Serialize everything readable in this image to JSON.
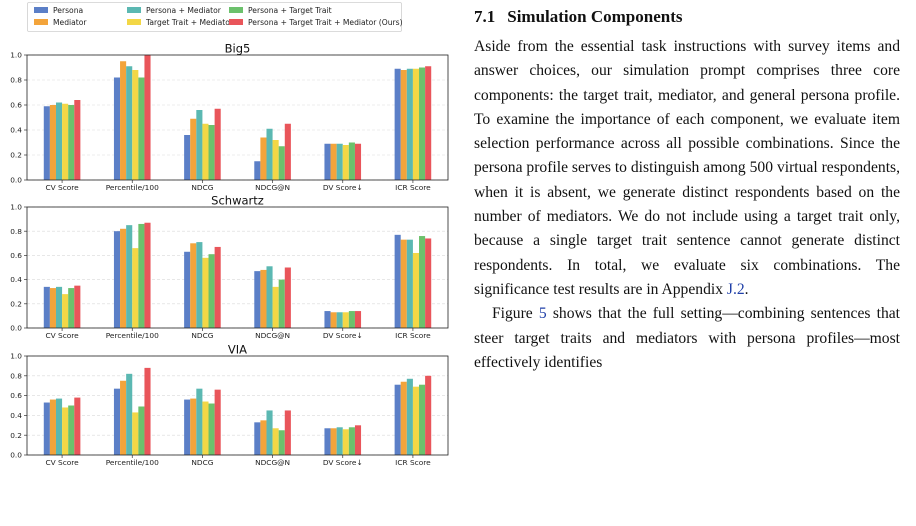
{
  "figure": {
    "legend": [
      {
        "label": "Persona",
        "color": "#5b7fc7"
      },
      {
        "label": "Mediator",
        "color": "#f3a43b"
      },
      {
        "label": "Persona + Mediator",
        "color": "#5bb8b2"
      },
      {
        "label": "Target Trait + Mediator",
        "color": "#f3d746"
      },
      {
        "label": "Persona + Target Trait",
        "color": "#6cc16c"
      },
      {
        "label": "Persona + Target Trait + Mediator (Ours)",
        "color": "#e9555a"
      }
    ]
  },
  "chart_data": [
    {
      "type": "bar",
      "title": "Big5",
      "categories": [
        "CV Score",
        "Percentile/100",
        "NDCG",
        "NDCG@N",
        "DV Score↓",
        "ICR Score"
      ],
      "ylim": [
        0,
        1.0
      ],
      "yticks": [
        "0.0",
        "0.2",
        "0.4",
        "0.6",
        "0.8",
        "1.0"
      ],
      "grid": true,
      "series": [
        {
          "name": "Persona",
          "values": [
            0.59,
            0.82,
            0.36,
            0.15,
            0.29,
            0.89
          ]
        },
        {
          "name": "Mediator",
          "values": [
            0.6,
            0.95,
            0.49,
            0.34,
            0.29,
            0.88
          ]
        },
        {
          "name": "Persona + Mediator",
          "values": [
            0.62,
            0.91,
            0.56,
            0.41,
            0.29,
            0.89
          ]
        },
        {
          "name": "Target Trait + Mediator",
          "values": [
            0.61,
            0.88,
            0.45,
            0.32,
            0.28,
            0.89
          ]
        },
        {
          "name": "Persona + Target Trait",
          "values": [
            0.6,
            0.82,
            0.44,
            0.27,
            0.3,
            0.9
          ]
        },
        {
          "name": "Persona + Target Trait + Mediator (Ours)",
          "values": [
            0.64,
            1.0,
            0.57,
            0.45,
            0.29,
            0.91
          ]
        }
      ]
    },
    {
      "type": "bar",
      "title": "Schwartz",
      "categories": [
        "CV Score",
        "Percentile/100",
        "NDCG",
        "NDCG@N",
        "DV Score↓",
        "ICR Score"
      ],
      "ylim": [
        0,
        1.0
      ],
      "yticks": [
        "0.0",
        "0.2",
        "0.4",
        "0.6",
        "0.8",
        "1.0"
      ],
      "grid": true,
      "series": [
        {
          "name": "Persona",
          "values": [
            0.34,
            0.8,
            0.63,
            0.47,
            0.14,
            0.77
          ]
        },
        {
          "name": "Mediator",
          "values": [
            0.33,
            0.82,
            0.7,
            0.48,
            0.13,
            0.73
          ]
        },
        {
          "name": "Persona + Mediator",
          "values": [
            0.34,
            0.85,
            0.71,
            0.51,
            0.13,
            0.73
          ]
        },
        {
          "name": "Target Trait + Mediator",
          "values": [
            0.28,
            0.66,
            0.58,
            0.34,
            0.13,
            0.62
          ]
        },
        {
          "name": "Persona + Target Trait",
          "values": [
            0.33,
            0.86,
            0.61,
            0.4,
            0.14,
            0.76
          ]
        },
        {
          "name": "Persona + Target Trait + Mediator (Ours)",
          "values": [
            0.35,
            0.87,
            0.67,
            0.5,
            0.14,
            0.74
          ]
        }
      ]
    },
    {
      "type": "bar",
      "title": "VIA",
      "categories": [
        "CV Score",
        "Percentile/100",
        "NDCG",
        "NDCG@N",
        "DV Score↓",
        "ICR Score"
      ],
      "ylim": [
        0,
        1.0
      ],
      "yticks": [
        "0.0",
        "0.2",
        "0.4",
        "0.6",
        "0.8",
        "1.0"
      ],
      "grid": true,
      "series": [
        {
          "name": "Persona",
          "values": [
            0.53,
            0.67,
            0.56,
            0.33,
            0.27,
            0.71
          ]
        },
        {
          "name": "Mediator",
          "values": [
            0.56,
            0.75,
            0.57,
            0.35,
            0.27,
            0.74
          ]
        },
        {
          "name": "Persona + Mediator",
          "values": [
            0.57,
            0.82,
            0.67,
            0.45,
            0.28,
            0.77
          ]
        },
        {
          "name": "Target Trait + Mediator",
          "values": [
            0.48,
            0.43,
            0.54,
            0.27,
            0.26,
            0.69
          ]
        },
        {
          "name": "Persona + Target Trait",
          "values": [
            0.5,
            0.49,
            0.52,
            0.25,
            0.28,
            0.71
          ]
        },
        {
          "name": "Persona + Target Trait + Mediator (Ours)",
          "values": [
            0.58,
            0.88,
            0.66,
            0.45,
            0.3,
            0.8
          ]
        }
      ]
    }
  ],
  "section": {
    "number": "7.1",
    "title": "Simulation Components"
  },
  "paragraph1": {
    "text": "Aside from the essential task instructions with survey items and answer choices, our simulation prompt comprises three core components: the target trait, mediator, and general persona profile. To examine the importance of each component, we evaluate item selection performance across all possible combinations. Since the persona profile serves to distinguish among 500 virtual respondents, when it is absent, we generate distinct respondents based on the number of mediators. We do not include using a target trait only, because a single target trait sentence cannot generate distinct respondents. In total, we evaluate six combinations. The significance test results are in Appendix ",
    "ref": "J.2",
    "end": "."
  },
  "paragraph2": {
    "start": "Figure ",
    "ref": "5",
    "text": " shows that the full setting—combining sentences that steer target traits and mediators with persona profiles—most effectively identifies"
  }
}
